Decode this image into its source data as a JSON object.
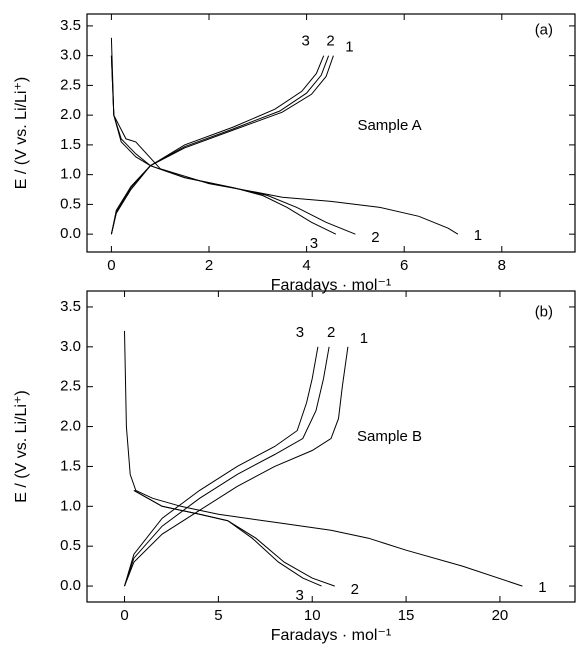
{
  "chart_data": [
    {
      "type": "line",
      "annotations": [
        "(a)",
        "Sample A"
      ],
      "x_label": "Faradays · mol⁻¹",
      "y_label": "E / (V vs. Li/Li⁺)",
      "xlim": [
        -0.5,
        9.5
      ],
      "ylim": [
        -0.3,
        3.7
      ],
      "xticks": [
        0,
        2,
        4,
        6,
        8
      ],
      "yticks": [
        {
          "value": 0,
          "label": "0.0"
        },
        0.5,
        {
          "value": 1,
          "label": "1.0"
        },
        1.5,
        {
          "value": 2,
          "label": "2.0"
        },
        2.5,
        {
          "value": 3,
          "label": "3.0"
        },
        3.5
      ],
      "series": [
        {
          "name": "1",
          "color": "#000000",
          "x": [
            0,
            0.05,
            0.3,
            0.5,
            1.0,
            2,
            3,
            3.5,
            4.5,
            5.5,
            6.3,
            6.9,
            7.1
          ],
          "values": [
            3.3,
            2.0,
            1.6,
            1.55,
            1.1,
            0.85,
            0.7,
            0.62,
            0.55,
            0.45,
            0.3,
            0.1,
            0
          ]
        },
        {
          "name": "2",
          "color": "#000000",
          "x": [
            0,
            0.05,
            0.2,
            0.5,
            0.8,
            1.5,
            2.5,
            3.2,
            3.8,
            4.4,
            5.0
          ],
          "values": [
            3.0,
            2.0,
            1.6,
            1.35,
            1.15,
            0.95,
            0.78,
            0.65,
            0.45,
            0.2,
            0
          ]
        },
        {
          "name": "3",
          "color": "#000000",
          "x": [
            0,
            0.05,
            0.2,
            0.5,
            0.8,
            1.5,
            2.5,
            3.1,
            3.6,
            4.1,
            4.6
          ],
          "values": [
            3.0,
            2.0,
            1.55,
            1.3,
            1.15,
            0.95,
            0.78,
            0.65,
            0.45,
            0.2,
            0
          ]
        },
        {
          "name": "1",
          "color": "#000000",
          "x": [
            0,
            0.1,
            0.4,
            0.8,
            1.5,
            2.5,
            3.5,
            4.1,
            4.4,
            4.55
          ],
          "values": [
            0,
            0.35,
            0.75,
            1.15,
            1.45,
            1.75,
            2.05,
            2.35,
            2.65,
            3.0
          ]
        },
        {
          "name": "2",
          "color": "#000000",
          "x": [
            0,
            0.1,
            0.4,
            0.8,
            1.5,
            2.5,
            3.45,
            4.0,
            4.3,
            4.45
          ],
          "values": [
            0,
            0.37,
            0.78,
            1.15,
            1.47,
            1.77,
            2.07,
            2.37,
            2.67,
            3.0
          ]
        },
        {
          "name": "3",
          "color": "#000000",
          "x": [
            0,
            0.1,
            0.4,
            0.8,
            1.5,
            2.5,
            3.35,
            3.9,
            4.2,
            4.35
          ],
          "values": [
            0,
            0.4,
            0.8,
            1.15,
            1.5,
            1.8,
            2.1,
            2.4,
            2.7,
            3.0
          ]
        }
      ]
    },
    {
      "type": "line",
      "annotations": [
        "(b)",
        "Sample B"
      ],
      "x_label": "Faradays · mol⁻¹",
      "y_label": "E / (V vs. Li/Li⁺)",
      "xlim": [
        -2,
        24
      ],
      "ylim": [
        -0.2,
        3.7
      ],
      "xticks": [
        0,
        5,
        10,
        15,
        20
      ],
      "yticks": [
        {
          "value": 0,
          "label": "0.0"
        },
        0.5,
        {
          "value": 1,
          "label": "1.0"
        },
        1.5,
        {
          "value": 2,
          "label": "2.0"
        },
        2.5,
        {
          "value": 3,
          "label": "3.0"
        },
        3.5
      ],
      "series": [
        {
          "name": "1",
          "color": "#000000",
          "x": [
            0,
            0.1,
            0.3,
            0.6,
            1.5,
            3,
            5,
            8,
            11,
            13,
            15,
            18,
            21.2
          ],
          "values": [
            3.2,
            2.0,
            1.4,
            1.2,
            1.1,
            1.0,
            0.9,
            0.8,
            0.7,
            0.6,
            0.45,
            0.25,
            0
          ]
        },
        {
          "name": "2",
          "color": "#000000",
          "x": [
            0.5,
            2,
            4,
            5.5,
            7,
            8.5,
            10,
            11.2
          ],
          "values": [
            1.2,
            1.0,
            0.9,
            0.82,
            0.6,
            0.3,
            0.1,
            0
          ]
        },
        {
          "name": "3",
          "color": "#000000",
          "x": [
            0.5,
            2,
            4,
            5.5,
            6.8,
            8.2,
            9.5,
            10.5
          ],
          "values": [
            1.2,
            1.0,
            0.9,
            0.82,
            0.6,
            0.3,
            0.1,
            0
          ]
        },
        {
          "name": "1",
          "color": "#000000",
          "x": [
            0,
            0.5,
            2,
            4,
            6,
            8,
            10,
            11,
            11.4,
            11.6,
            11.9
          ],
          "values": [
            0,
            0.3,
            0.65,
            0.95,
            1.25,
            1.5,
            1.7,
            1.85,
            2.1,
            2.5,
            3.0
          ]
        },
        {
          "name": "2",
          "color": "#000000",
          "x": [
            0,
            0.5,
            2,
            4,
            6,
            8,
            9.5,
            10.2,
            10.6,
            10.9
          ],
          "values": [
            0,
            0.35,
            0.75,
            1.1,
            1.4,
            1.65,
            1.85,
            2.2,
            2.6,
            3.0
          ]
        },
        {
          "name": "3",
          "color": "#000000",
          "x": [
            0,
            0.5,
            2,
            4,
            6,
            8,
            9.2,
            9.7,
            10.0,
            10.3
          ],
          "values": [
            0,
            0.4,
            0.85,
            1.2,
            1.5,
            1.75,
            1.95,
            2.3,
            2.6,
            3.0
          ]
        }
      ]
    }
  ]
}
